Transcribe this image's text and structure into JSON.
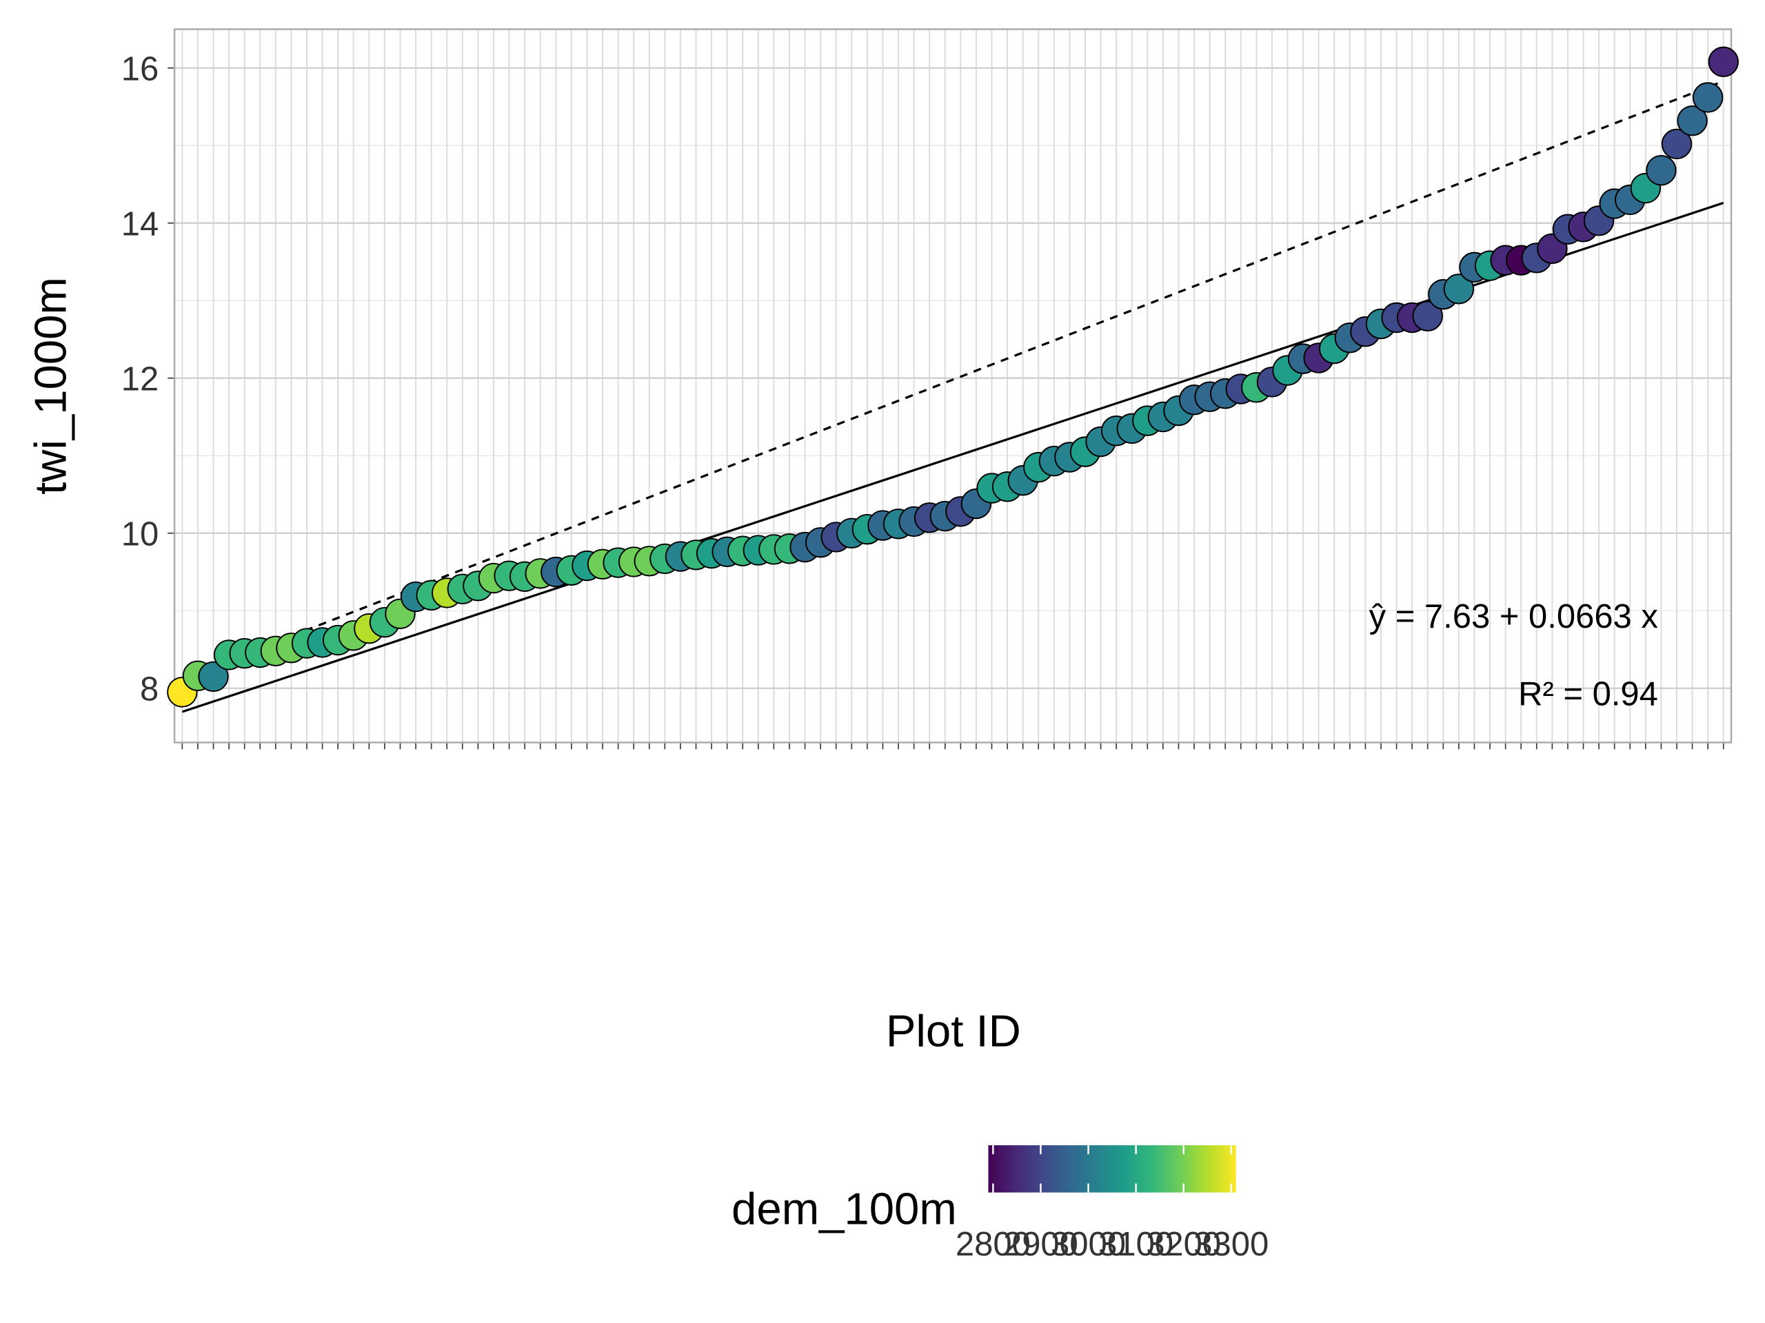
{
  "chart_data": {
    "type": "scatter",
    "x_label": "Plot ID",
    "y_label": "twi_1000m",
    "x": [
      1,
      2,
      3,
      4,
      5,
      6,
      7,
      8,
      9,
      10,
      11,
      12,
      13,
      14,
      15,
      16,
      17,
      18,
      19,
      20,
      21,
      22,
      23,
      24,
      25,
      26,
      27,
      28,
      29,
      30,
      31,
      32,
      33,
      34,
      35,
      36,
      37,
      38,
      39,
      40,
      41,
      42,
      43,
      44,
      45,
      46,
      47,
      48,
      49,
      50,
      51,
      52,
      53,
      54,
      55,
      56,
      57,
      58,
      59,
      60,
      61,
      62,
      63,
      64,
      65,
      66,
      67,
      68,
      69,
      70,
      71,
      72,
      73,
      74,
      75,
      76,
      77,
      78,
      79,
      80,
      81,
      82,
      83,
      84,
      85,
      86,
      87,
      88,
      89,
      90,
      91,
      92,
      93,
      94,
      95,
      96,
      97,
      98,
      99,
      100
    ],
    "series": [
      {
        "values": [
          7.95,
          8.16,
          8.15,
          8.43,
          8.45,
          8.46,
          8.48,
          8.52,
          8.58,
          8.59,
          8.62,
          8.68,
          8.77,
          8.85,
          8.96,
          9.18,
          9.2,
          9.23,
          9.28,
          9.32,
          9.42,
          9.45,
          9.44,
          9.48,
          9.5,
          9.52,
          9.58,
          9.6,
          9.62,
          9.63,
          9.64,
          9.67,
          9.7,
          9.72,
          9.74,
          9.76,
          9.77,
          9.78,
          9.79,
          9.8,
          9.82,
          9.88,
          9.95,
          10.0,
          10.05,
          10.1,
          10.12,
          10.15,
          10.2,
          10.22,
          10.28,
          10.38,
          10.58,
          10.6,
          10.68,
          10.85,
          10.93,
          10.98,
          11.05,
          11.18,
          11.32,
          11.35,
          11.45,
          11.5,
          11.58,
          11.72,
          11.76,
          11.8,
          11.86,
          11.88,
          11.95,
          12.1,
          12.25,
          12.26,
          12.38,
          12.52,
          12.6,
          12.7,
          12.78,
          12.78,
          12.8,
          13.08,
          13.15,
          13.43,
          13.45,
          13.52,
          13.52,
          13.55,
          13.67,
          13.92,
          13.95,
          14.03,
          14.25,
          14.3,
          14.45,
          14.68,
          15.02,
          15.32,
          15.62,
          16.08
        ],
        "colors": [
          "#fde725",
          "#6ece58",
          "#26828e",
          "#35b779",
          "#35b779",
          "#35b779",
          "#6ece58",
          "#6ece58",
          "#35b779",
          "#1f9e89",
          "#35b779",
          "#6ece58",
          "#b5de2b",
          "#35b779",
          "#6ece58",
          "#26828e",
          "#35b779",
          "#b5de2b",
          "#35b779",
          "#35b779",
          "#6ece58",
          "#35b779",
          "#35b779",
          "#6ece58",
          "#31688e",
          "#35b779",
          "#1f9e89",
          "#6ece58",
          "#35b779",
          "#6ece58",
          "#6ece58",
          "#35b779",
          "#26828e",
          "#35b779",
          "#1f9e89",
          "#26828e",
          "#35b779",
          "#1f9e89",
          "#35b779",
          "#35b779",
          "#31688e",
          "#31688e",
          "#3e4989",
          "#26828e",
          "#1f9e89",
          "#31688e",
          "#26828e",
          "#31688e",
          "#3e4989",
          "#31688e",
          "#3e4989",
          "#31688e",
          "#1f9e89",
          "#1f9e89",
          "#26828e",
          "#1f9e89",
          "#26828e",
          "#26828e",
          "#1f9e89",
          "#26828e",
          "#26828e",
          "#26828e",
          "#1f9e89",
          "#26828e",
          "#26828e",
          "#31688e",
          "#31688e",
          "#31688e",
          "#3e4989",
          "#35b779",
          "#3e4989",
          "#1f9e89",
          "#31688e",
          "#482878",
          "#1f9e89",
          "#31688e",
          "#3e4989",
          "#26828e",
          "#3e4989",
          "#482878",
          "#3e4989",
          "#31688e",
          "#26828e",
          "#31688e",
          "#1f9e89",
          "#482878",
          "#440154",
          "#3e4989",
          "#482878",
          "#3e4989",
          "#482878",
          "#3e4989",
          "#31688e",
          "#31688e",
          "#1f9e89",
          "#31688e",
          "#3e4989",
          "#31688e",
          "#31688e",
          "#482878"
        ]
      }
    ],
    "xlim": [
      0.5,
      100.5
    ],
    "ylim": [
      7.3,
      16.5
    ],
    "yticks": [
      8,
      10,
      12,
      14,
      16
    ],
    "grid": true,
    "fit": {
      "intercept": 7.63,
      "slope": 0.0663,
      "x": [
        1,
        100
      ]
    },
    "reference_line": {
      "x": [
        1,
        100
      ],
      "y": [
        8.13,
        15.83
      ]
    },
    "fit_label": "ŷ = 7.63 + 0.0663 x",
    "r2_label": "R² = 0.94",
    "colorbar": {
      "title": "dem_100m",
      "lim": [
        2790,
        3310
      ],
      "ticks": [
        2800,
        2900,
        3000,
        3100,
        3200,
        3300
      ],
      "colorscale": [
        "#440154",
        "#482878",
        "#3e4989",
        "#31688e",
        "#26828e",
        "#1f9e89",
        "#35b779",
        "#6ece58",
        "#b5de2b",
        "#fde725"
      ]
    }
  }
}
